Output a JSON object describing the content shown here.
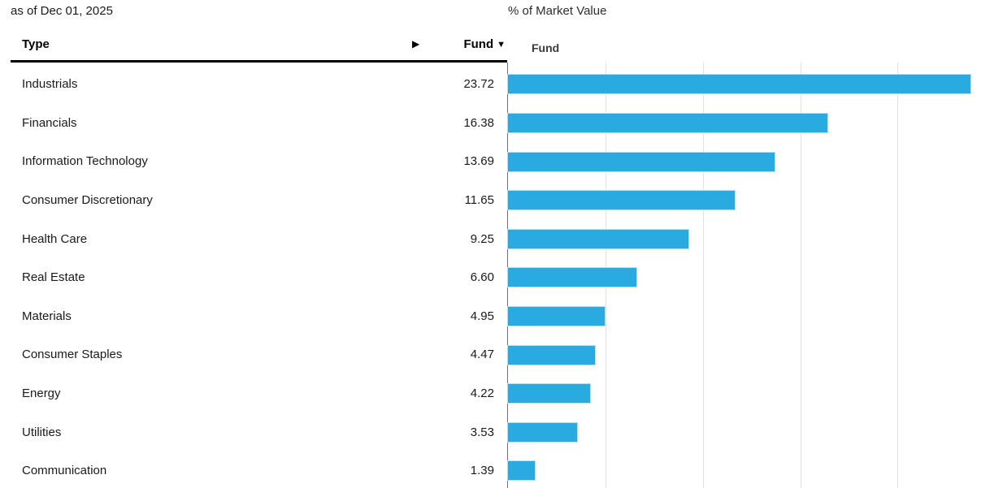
{
  "meta": {
    "as_of": "as of Dec 01, 2025"
  },
  "table": {
    "type_header": "Type",
    "expand_arrow": "▶",
    "fund_header": "Fund",
    "sort_indicator": "▼",
    "rows": [
      {
        "label": "Industrials",
        "value": "23.72"
      },
      {
        "label": "Financials",
        "value": "16.38"
      },
      {
        "label": "Information Technology",
        "value": "13.69"
      },
      {
        "label": "Consumer Discretionary",
        "value": "11.65"
      },
      {
        "label": "Health Care",
        "value": "9.25"
      },
      {
        "label": "Real Estate",
        "value": "6.60"
      },
      {
        "label": "Materials",
        "value": "4.95"
      },
      {
        "label": "Consumer Staples",
        "value": "4.47"
      },
      {
        "label": "Energy",
        "value": "4.22"
      },
      {
        "label": "Utilities",
        "value": "3.53"
      },
      {
        "label": "Communication",
        "value": "1.39"
      }
    ]
  },
  "chart": {
    "title": "% of Market Value",
    "legend_label": "Fund",
    "bar_color": "#29ABE2",
    "gridline_color": "#E2E2E2",
    "axis_color": "#6F7173"
  },
  "chart_data": {
    "type": "bar",
    "orientation": "horizontal",
    "title": "% of Market Value",
    "series_name": "Fund",
    "categories": [
      "Industrials",
      "Financials",
      "Information Technology",
      "Consumer Discretionary",
      "Health Care",
      "Real Estate",
      "Materials",
      "Consumer Staples",
      "Energy",
      "Utilities",
      "Communication"
    ],
    "values": [
      23.72,
      16.38,
      13.69,
      11.65,
      9.25,
      6.6,
      4.95,
      4.47,
      4.22,
      3.53,
      1.39
    ],
    "xlabel": "% of Market Value",
    "xlim": [
      0,
      24.32
    ],
    "gridlines": [
      5,
      10,
      15,
      20
    ],
    "grid": true,
    "legend_position": "top-left"
  }
}
